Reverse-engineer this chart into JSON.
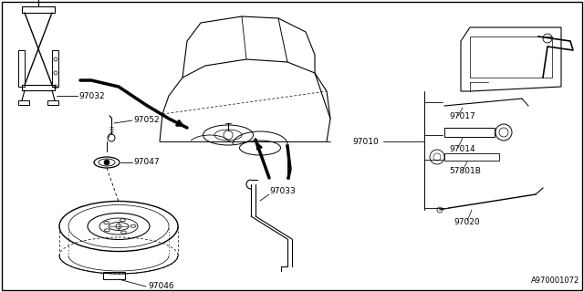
{
  "background_color": "#ffffff",
  "line_color": "#000000",
  "text_color": "#000000",
  "diagram_id": "A970001072",
  "fs_label": 6.5,
  "fs_id": 6.0
}
